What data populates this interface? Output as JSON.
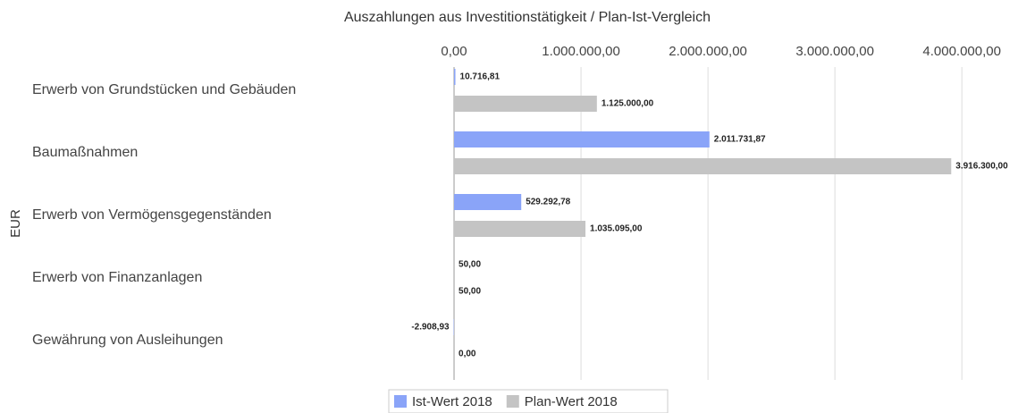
{
  "chart_data": {
    "type": "hbar",
    "title": "Auszahlungen aus Investitionstätigkeit / Plan-Ist-Vergleich",
    "y_label": "EUR",
    "categories": [
      "Erwerb von Grundstücken und Gebäuden",
      "Baumaßnahmen",
      "Erwerb von Vermögensgegenständen",
      "Erwerb von Finanzanlagen",
      "Gewährung von Ausleihungen"
    ],
    "series": [
      {
        "name": "Ist-Wert 2018",
        "color": "#8aa4f8",
        "values": [
          10716.81,
          2011731.87,
          529292.78,
          50,
          -2908.93
        ],
        "value_labels": [
          "10.716,81",
          "2.011.731,87",
          "529.292,78",
          "50,00",
          "-2.908,93"
        ]
      },
      {
        "name": "Plan-Wert 2018",
        "color": "#c4c4c4",
        "values": [
          1125000,
          3916300,
          1035095,
          50,
          0
        ],
        "value_labels": [
          "1.125.000,00",
          "3.916.300,00",
          "1.035.095,00",
          "50,00",
          "0,00"
        ]
      }
    ],
    "xlim": [
      -500000,
      4400000
    ],
    "xticks": [
      {
        "value": 0,
        "label": "0,00"
      },
      {
        "value": 1000000,
        "label": "1.000.000,00"
      },
      {
        "value": 2000000,
        "label": "2.000.000,00"
      },
      {
        "value": 3000000,
        "label": "3.000.000,00"
      },
      {
        "value": 4000000,
        "label": "4.000.000,00"
      }
    ],
    "grid": true,
    "legend": "bottom"
  }
}
